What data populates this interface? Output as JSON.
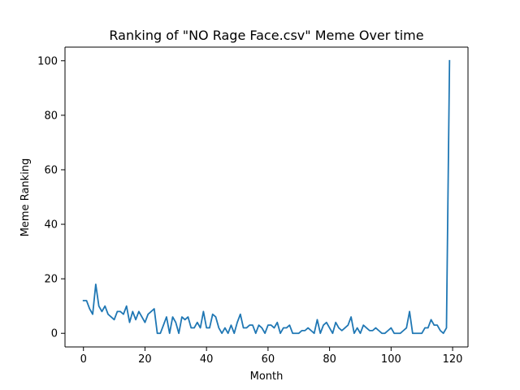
{
  "chart_data": {
    "type": "line",
    "title": "Ranking of \"NO Rage Face.csv\" Meme Over time",
    "xlabel": "Month",
    "ylabel": "Meme Ranking",
    "xlim": [
      -6,
      125
    ],
    "ylim": [
      -5,
      105
    ],
    "xticks": [
      0,
      20,
      40,
      60,
      80,
      100,
      120
    ],
    "yticks": [
      0,
      20,
      40,
      60,
      80,
      100
    ],
    "grid": false,
    "legend": "none",
    "series": [
      {
        "color": "#1f77b4",
        "x": [
          0,
          1,
          2,
          3,
          4,
          5,
          6,
          7,
          8,
          9,
          10,
          11,
          12,
          13,
          14,
          15,
          16,
          17,
          18,
          19,
          20,
          21,
          22,
          23,
          24,
          25,
          26,
          27,
          28,
          29,
          30,
          31,
          32,
          33,
          34,
          35,
          36,
          37,
          38,
          39,
          40,
          41,
          42,
          43,
          44,
          45,
          46,
          47,
          48,
          49,
          50,
          51,
          52,
          53,
          54,
          55,
          56,
          57,
          58,
          59,
          60,
          61,
          62,
          63,
          64,
          65,
          66,
          67,
          68,
          69,
          70,
          71,
          72,
          73,
          74,
          75,
          76,
          77,
          78,
          79,
          80,
          81,
          82,
          83,
          84,
          85,
          86,
          87,
          88,
          89,
          90,
          91,
          92,
          93,
          94,
          95,
          96,
          97,
          98,
          99,
          100,
          101,
          102,
          103,
          104,
          105,
          106,
          107,
          108,
          109,
          110,
          111,
          112,
          113,
          114,
          115,
          116,
          117,
          118,
          119
        ],
        "y": [
          12,
          12,
          9,
          7,
          18,
          10,
          8,
          10,
          7,
          6,
          5,
          8,
          8,
          7,
          10,
          4,
          8,
          5,
          8,
          6,
          4,
          7,
          8,
          9,
          0,
          0,
          3,
          6,
          0,
          6,
          4,
          0,
          6,
          5,
          6,
          2,
          2,
          4,
          2,
          8,
          2,
          2,
          7,
          6,
          2,
          0,
          2,
          0,
          3,
          0,
          4,
          7,
          2,
          2,
          3,
          3,
          0,
          3,
          2,
          0,
          3,
          3,
          2,
          4,
          0,
          2,
          2,
          3,
          0,
          0,
          0,
          1,
          1,
          2,
          1,
          0,
          5,
          0,
          3,
          4,
          2,
          0,
          4,
          2,
          1,
          2,
          3,
          6,
          0,
          2,
          0,
          3,
          2,
          1,
          1,
          2,
          1,
          0,
          0,
          1,
          2,
          0,
          0,
          0,
          1,
          2,
          8,
          0,
          0,
          0,
          0,
          2,
          2,
          5,
          3,
          3,
          1,
          0,
          2,
          100
        ]
      }
    ]
  }
}
